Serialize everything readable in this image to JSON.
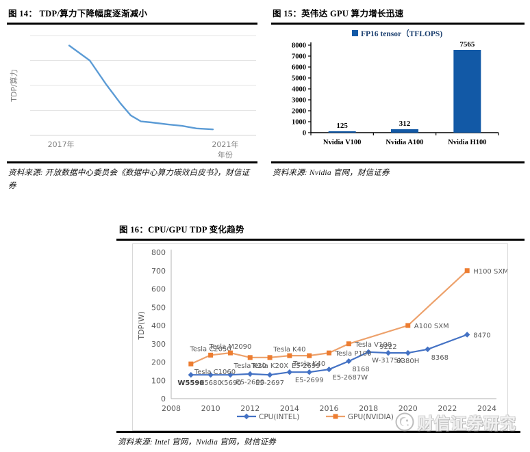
{
  "figures": {
    "fig14": {
      "title": "图 14： TDP/算力下降幅度逐渐减小",
      "source": "资料来源: 开放数据中心委员会《数据中心算力碳效白皮书》，财信证券"
    },
    "fig15": {
      "title": "图 15：英伟达 GPU 算力增长迅速",
      "source": "资料来源: Nvidia 官网，财信证券"
    },
    "fig16": {
      "title": "图 16：CPU/GPU TDP 变化趋势",
      "source": "资料来源: Intel 官网，Nvidia 官网，财信证券"
    }
  },
  "watermark": {
    "text": "财信证券研究",
    "logo": "circle-seal-icon"
  },
  "chart_data": [
    {
      "id": "fig14",
      "type": "line",
      "title": "TDP/算力下降幅度逐渐减小",
      "ylabel": "TDP/算力",
      "xlabel": "年份",
      "x_tick_labels": [
        "2017年",
        "2021年"
      ],
      "x_range": [
        2017,
        2021
      ],
      "ylim": [
        0,
        100
      ],
      "gridlines": 5,
      "grid_color": "#e4e4e4",
      "line_color": "#5B9BD5",
      "text_color": "#808080",
      "points": [
        [
          2017.2,
          90
        ],
        [
          2017.7,
          75
        ],
        [
          2018.1,
          51
        ],
        [
          2018.45,
          32
        ],
        [
          2018.7,
          20
        ],
        [
          2018.95,
          14
        ],
        [
          2019.2,
          13
        ],
        [
          2019.6,
          11
        ],
        [
          2019.95,
          9.5
        ],
        [
          2020.3,
          7
        ],
        [
          2020.7,
          6
        ]
      ]
    },
    {
      "id": "fig15",
      "type": "bar",
      "title": "英伟达 GPU 算力增长迅速",
      "legend": "FP16 tensor（TFLOPS)",
      "legend_color": "#1a3e6e",
      "categories": [
        "Nvidia V100",
        "Nvidia A100",
        "Nvidia H100"
      ],
      "values": [
        125,
        312,
        7565
      ],
      "ylim": [
        0,
        8000
      ],
      "y_tick_step": 1000,
      "bar_color": "#1259A6"
    },
    {
      "id": "fig16",
      "type": "line",
      "title": "CPU/GPU TDP 变化趋势",
      "ylabel": "TDP(W)",
      "ylim": [
        0,
        800
      ],
      "y_tick_step": 100,
      "x_ticks": [
        2008,
        2010,
        2012,
        2014,
        2016,
        2018,
        2020,
        2022,
        2024
      ],
      "x_range": [
        2008,
        2024
      ],
      "axis_color": "#c0c0c0",
      "text_color": "#595959",
      "legend_position": "bottom",
      "series": [
        {
          "name": "CPU(INTEL)",
          "marker": "diamond",
          "color": "#4472C4",
          "line_color": "#4472C4",
          "points": [
            {
              "x": 2009,
              "y": 130,
              "label": "W5590",
              "pos": "below",
              "bold": true
            },
            {
              "x": 2010,
              "y": 130,
              "label": "X5680",
              "pos": "below"
            },
            {
              "x": 2011,
              "y": 130,
              "label": "X5690",
              "pos": "below"
            },
            {
              "x": 2012,
              "y": 135,
              "label": "E5-2690",
              "pos": "below"
            },
            {
              "x": 2013,
              "y": 130,
              "label": "E5-2697",
              "pos": "below"
            },
            {
              "x": 2014,
              "y": 145,
              "label": "E5-2699",
              "pos": "above-right"
            },
            {
              "x": 2015,
              "y": 145,
              "label": "E5-2699",
              "pos": "below"
            },
            {
              "x": 2016,
              "y": 160,
              "label": "E5-2687W",
              "pos": "below-right"
            },
            {
              "x": 2017,
              "y": 205,
              "label": "8168",
              "pos": "below-right"
            },
            {
              "x": 2018,
              "y": 255,
              "label": "W-3175X",
              "pos": "below-right"
            },
            {
              "x": 2019,
              "y": 250,
              "label": "9222",
              "pos": "above"
            },
            {
              "x": 2020,
              "y": 250,
              "label": "8380H",
              "pos": "below"
            },
            {
              "x": 2021,
              "y": 270,
              "label": "8368",
              "pos": "below-right"
            },
            {
              "x": 2023,
              "y": 350,
              "label": "8470",
              "pos": "right"
            }
          ]
        },
        {
          "name": "GPU(NVIDIA)",
          "marker": "square",
          "color": "#ED7D31",
          "line_color": "#EDA16B",
          "points": [
            {
              "x": 2009,
              "y": 190,
              "label": "Tesla C1060",
              "pos": "below-right"
            },
            {
              "x": 2010,
              "y": 238,
              "label": "Tesla C2050",
              "pos": "above"
            },
            {
              "x": 2011,
              "y": 250,
              "label": "Tesla M2090",
              "pos": "above"
            },
            {
              "x": 2012,
              "y": 225,
              "label": "Tesla K20",
              "pos": "below"
            },
            {
              "x": 2013,
              "y": 225,
              "label": "Tesla K20X",
              "pos": "below"
            },
            {
              "x": 2014,
              "y": 235,
              "label": "Tesla K40",
              "pos": "above"
            },
            {
              "x": 2015,
              "y": 235,
              "label": "Tesla K40",
              "pos": "below"
            },
            {
              "x": 2016,
              "y": 250,
              "label": "Tesla P100",
              "pos": "right"
            },
            {
              "x": 2017,
              "y": 300,
              "label": "Tesla V100",
              "pos": "right"
            },
            {
              "x": 2020,
              "y": 400,
              "label": "A100 SXM",
              "pos": "right"
            },
            {
              "x": 2023,
              "y": 700,
              "label": "H100 SXM",
              "pos": "right"
            }
          ]
        }
      ]
    }
  ]
}
